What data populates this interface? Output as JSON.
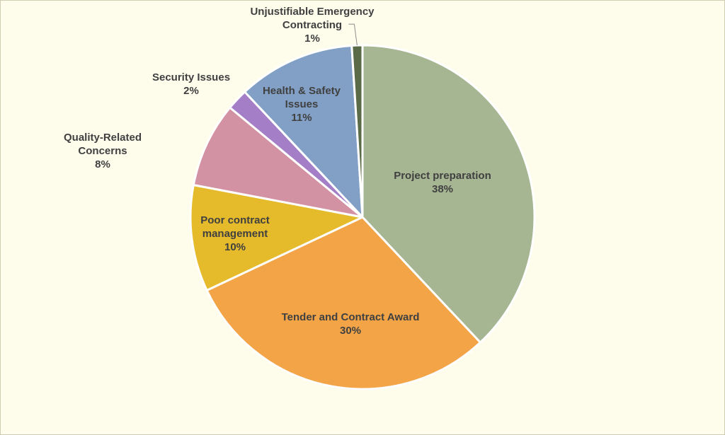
{
  "chart_data": {
    "type": "pie",
    "title": "",
    "start_angle_deg": 0,
    "direction": "clockwise",
    "slices": [
      {
        "label": [
          "Project preparation"
        ],
        "pct_label": "38%",
        "value": 38,
        "color": "#a6b592",
        "label_pos": "inside"
      },
      {
        "label": [
          "Tender and Contract Award"
        ],
        "pct_label": "30%",
        "value": 30,
        "color": "#f2a447",
        "label_pos": "inside"
      },
      {
        "label": [
          "Poor contract",
          "management"
        ],
        "pct_label": "10%",
        "value": 10,
        "color": "#e5bb2b",
        "label_pos": "inside"
      },
      {
        "label": [
          "Quality-Related",
          "Concerns"
        ],
        "pct_label": "8%",
        "value": 8,
        "color": "#d391a4",
        "label_pos": "outside"
      },
      {
        "label": [
          "Security Issues"
        ],
        "pct_label": "2%",
        "value": 2,
        "color": "#a47fc7",
        "label_pos": "outside"
      },
      {
        "label": [
          "Health & Safety",
          "Issues"
        ],
        "pct_label": "11%",
        "value": 11,
        "color": "#82a0c6",
        "label_pos": "inside"
      },
      {
        "label": [
          "Unjustifiable Emergency",
          "Contracting"
        ],
        "pct_label": "1%",
        "value": 1,
        "color": "#5b6b47",
        "label_pos": "outside-leader"
      }
    ]
  }
}
